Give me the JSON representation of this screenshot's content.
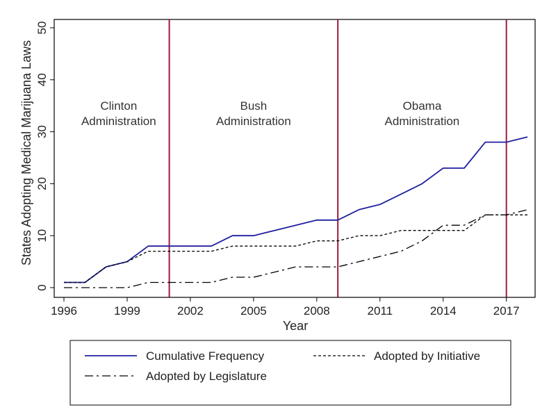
{
  "chart_data": {
    "type": "line",
    "xlabel": "Year",
    "ylabel": "States Adopting Medical Marijuana Laws",
    "xlim": [
      1996,
      2018
    ],
    "ylim": [
      0,
      50
    ],
    "x_ticks": [
      "1996",
      "1999",
      "2002",
      "2005",
      "2008",
      "2011",
      "2014",
      "2017"
    ],
    "y_ticks": [
      "0",
      "10",
      "20",
      "30",
      "40",
      "50"
    ],
    "x": [
      1996,
      1997,
      1998,
      1999,
      2000,
      2001,
      2002,
      2003,
      2004,
      2005,
      2006,
      2007,
      2008,
      2009,
      2010,
      2011,
      2012,
      2013,
      2014,
      2015,
      2016,
      2017,
      2018
    ],
    "series": [
      {
        "name": "Cumulative Frequency",
        "color": "#1f1f9e",
        "style": "solid",
        "values": [
          1,
          1,
          4,
          5,
          8,
          8,
          8,
          8,
          10,
          10,
          11,
          12,
          13,
          13,
          15,
          16,
          18,
          20,
          23,
          23,
          28,
          28,
          29
        ]
      },
      {
        "name": "Adopted by Initiative",
        "color": "#000000",
        "style": "dashed",
        "values": [
          1,
          1,
          4,
          5,
          7,
          7,
          7,
          7,
          8,
          8,
          8,
          8,
          9,
          9,
          10,
          10,
          11,
          11,
          11,
          11,
          14,
          14,
          14
        ]
      },
      {
        "name": "Adopted by Legislature",
        "color": "#000000",
        "style": "dashdot",
        "values": [
          0,
          0,
          0,
          0,
          1,
          1,
          1,
          1,
          2,
          2,
          3,
          4,
          4,
          4,
          5,
          6,
          7,
          9,
          12,
          12,
          14,
          14,
          15
        ]
      }
    ],
    "vertical_lines": [
      {
        "x": 2001,
        "color": "#9b1b3a"
      },
      {
        "x": 2009,
        "color": "#9b1b3a"
      },
      {
        "x": 2017,
        "color": "#9b1b3a"
      }
    ],
    "annotations": [
      {
        "line1": "Clinton",
        "line2": "Administration",
        "x": 1998.6
      },
      {
        "line1": "Bush",
        "line2": "Administration",
        "x": 2005.0
      },
      {
        "line1": "Obama",
        "line2": "Administration",
        "x": 2013.0
      }
    ],
    "annotation_y": 39,
    "legend": {
      "position": "bottom",
      "entries": [
        "Cumulative Frequency",
        "Adopted by Initiative",
        "Adopted by Legislature"
      ]
    }
  }
}
